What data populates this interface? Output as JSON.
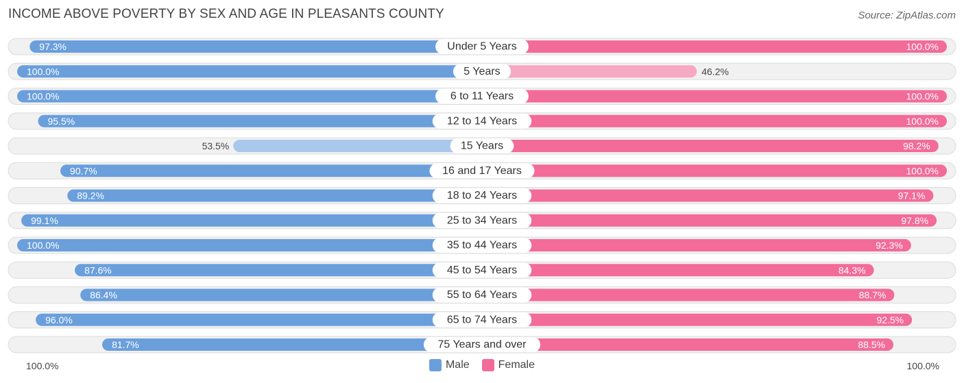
{
  "title": "INCOME ABOVE POVERTY BY SEX AND AGE IN PLEASANTS COUNTY",
  "source": "Source: ZipAtlas.com",
  "axis": {
    "left_label": "100.0%",
    "right_label": "100.0%"
  },
  "legend": {
    "male_label": "Male",
    "female_label": "Female"
  },
  "colors": {
    "male": "#6a9fdc",
    "male_light": "#a9c8ee",
    "female": "#f26b99",
    "female_light": "#f7a8c3",
    "track": "#ececec",
    "track_border": "#dcdcdc"
  },
  "chart_data": {
    "type": "bar",
    "orientation": "diverging-horizontal",
    "title": "INCOME ABOVE POVERTY BY SEX AND AGE IN PLEASANTS COUNTY",
    "xlim": [
      0,
      100
    ],
    "unit": "%",
    "categories": [
      "Under 5 Years",
      "5 Years",
      "6 to 11 Years",
      "12 to 14 Years",
      "15 Years",
      "16 and 17 Years",
      "18 to 24 Years",
      "25 to 34 Years",
      "35 to 44 Years",
      "45 to 54 Years",
      "55 to 64 Years",
      "65 to 74 Years",
      "75 Years and over"
    ],
    "series": [
      {
        "name": "Male",
        "values": [
          97.3,
          100.0,
          100.0,
          95.5,
          53.5,
          90.7,
          89.2,
          99.1,
          100.0,
          87.6,
          86.4,
          96.0,
          81.7
        ],
        "labels": [
          "97.3%",
          "100.0%",
          "100.0%",
          "95.5%",
          "53.5%",
          "90.7%",
          "89.2%",
          "99.1%",
          "100.0%",
          "87.6%",
          "86.4%",
          "96.0%",
          "81.7%"
        ]
      },
      {
        "name": "Female",
        "values": [
          100.0,
          46.2,
          100.0,
          100.0,
          98.2,
          100.0,
          97.1,
          97.8,
          92.3,
          84.3,
          88.7,
          92.5,
          88.5
        ],
        "labels": [
          "100.0%",
          "46.2%",
          "100.0%",
          "100.0%",
          "98.2%",
          "100.0%",
          "97.1%",
          "97.8%",
          "92.3%",
          "84.3%",
          "88.7%",
          "92.5%",
          "88.5%"
        ]
      }
    ],
    "legend_position": "bottom-center"
  }
}
